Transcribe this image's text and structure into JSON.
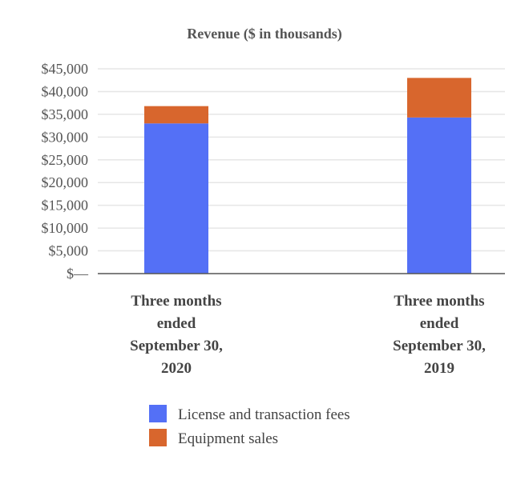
{
  "chart_data": {
    "type": "bar",
    "stacked": true,
    "title": "Revenue ($ in thousands)",
    "categories": [
      [
        "Three months",
        "ended",
        "September 30,",
        "2020"
      ],
      [
        "Three months",
        "ended",
        "September 30,",
        "2019"
      ]
    ],
    "series": [
      {
        "name": "License and transaction fees",
        "color": "#5470f6",
        "values": [
          33000,
          34300
        ]
      },
      {
        "name": "Equipment sales",
        "color": "#d8662d",
        "values": [
          3800,
          8700
        ]
      }
    ],
    "ylim": [
      0,
      45000
    ],
    "yticks": [
      0,
      5000,
      10000,
      15000,
      20000,
      25000,
      30000,
      35000,
      40000,
      45000
    ],
    "ytick_labels": [
      "$—",
      "$5,000",
      "$10,000",
      "$15,000",
      "$20,000",
      "$25,000",
      "$30,000",
      "$35,000",
      "$40,000",
      "$45,000"
    ],
    "grid": true,
    "legend_position": "bottom",
    "xlabel": "",
    "ylabel": ""
  }
}
